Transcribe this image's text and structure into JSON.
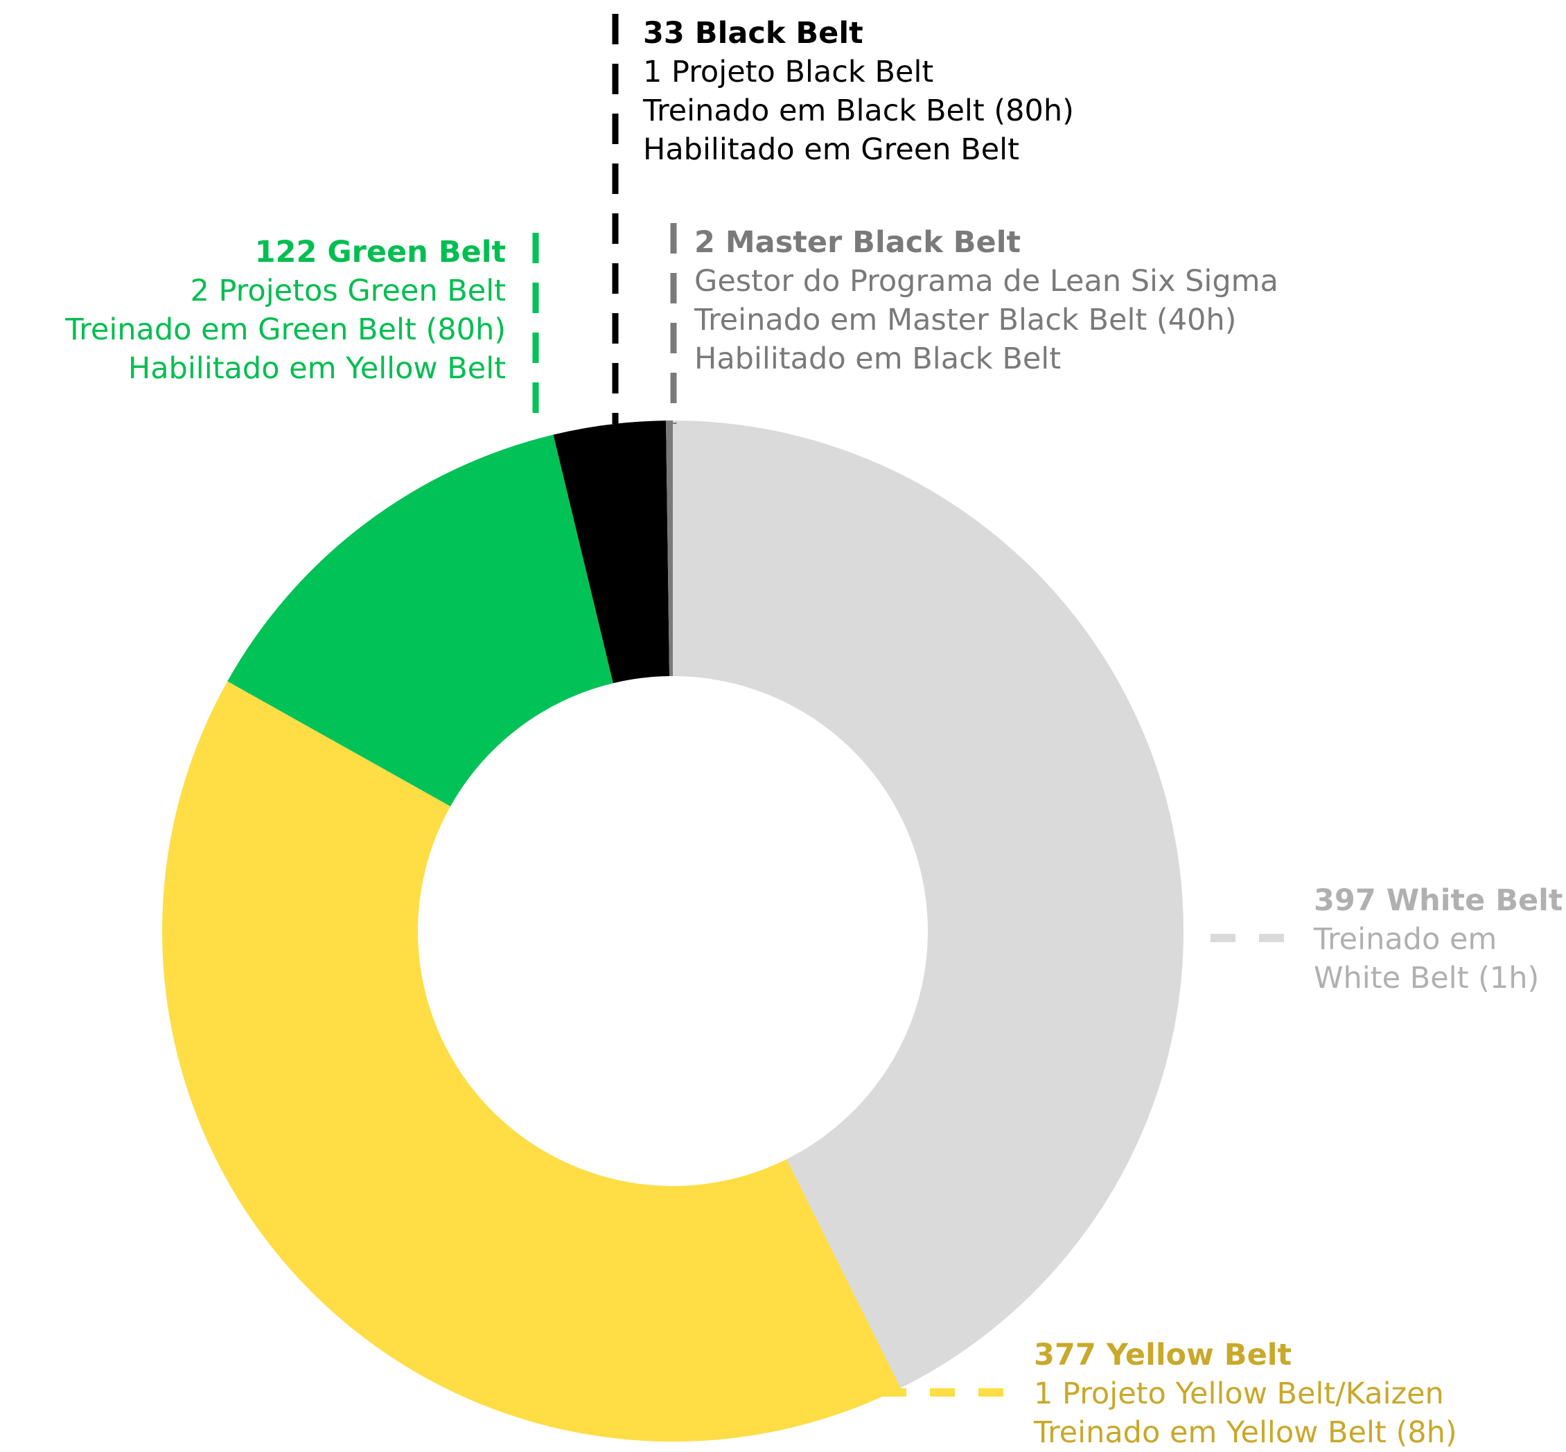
{
  "chart_data": {
    "type": "pie",
    "subtype": "donut",
    "categories": [
      "White Belt",
      "Yellow Belt",
      "Green Belt",
      "Black Belt",
      "Master Black Belt"
    ],
    "values": [
      397,
      377,
      122,
      33,
      2
    ],
    "colors": [
      "#dadada",
      "#ffdd44",
      "#00c257",
      "#000000",
      "#7a7a7a"
    ],
    "title": "",
    "annotations": [
      {
        "key": "black",
        "head": "33 Black Belt",
        "lines": [
          "1 Projeto Black Belt",
          "Treinado em Black Belt (80h)",
          "Habilitado em Green Belt"
        ],
        "color": "#000000"
      },
      {
        "key": "master",
        "head": "2 Master Black Belt",
        "lines": [
          "Gestor do Programa de Lean Six Sigma",
          "Treinado em Master Black Belt (40h)",
          "Habilitado em Black Belt"
        ],
        "color": "#7a7a7a"
      },
      {
        "key": "green",
        "head": "122 Green Belt",
        "lines": [
          "2 Projetos Green Belt",
          "Treinado em Green Belt (80h)",
          "Habilitado em Yellow Belt"
        ],
        "color": "#00be50"
      },
      {
        "key": "white",
        "head": "397 White Belt",
        "lines": [
          "Treinado em",
          "White Belt (1h)"
        ],
        "color": "#b0b0b0"
      },
      {
        "key": "yellow",
        "head": "377 Yellow Belt",
        "lines": [
          "1 Projeto Yellow Belt/Kaizen",
          "Treinado em Yellow Belt (8h)"
        ],
        "color": "#c9a82a"
      }
    ]
  }
}
